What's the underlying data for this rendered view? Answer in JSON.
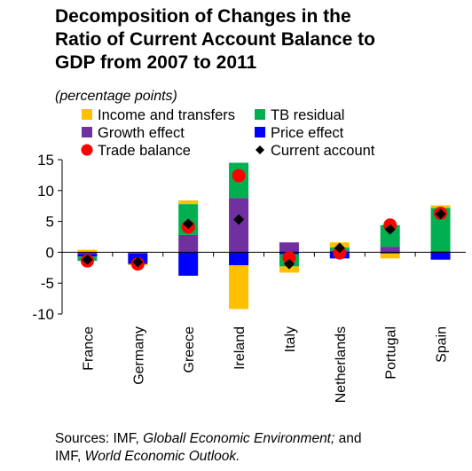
{
  "title": {
    "lines": [
      "Decomposition of Changes in the",
      "Ratio of Current Account Balance to",
      "GDP from 2007 to 2011"
    ]
  },
  "subtitle": "(percentage points)",
  "source": {
    "prefix": "Sources: IMF, ",
    "title1": "Globall Economic Environment;",
    "mid": " and",
    "line2_prefix": "IMF, ",
    "title2": "World Economic Outlook."
  },
  "colors": {
    "income_and_transfers": "#ffc000",
    "tb_residual": "#00b050",
    "growth_effect": "#7030a0",
    "price_effect": "#0000ff",
    "trade_balance": "#ff0000",
    "current_account": "#000000"
  },
  "chart_data": {
    "type": "bar",
    "stacked": true,
    "categories": [
      "France",
      "Germany",
      "Greece",
      "Ireland",
      "Italy",
      "Netherlands",
      "Portugal",
      "Spain"
    ],
    "series": [
      {
        "name": "Growth effect",
        "kind": "bar",
        "color": "#7030a0",
        "values": [
          -0.3,
          -0.2,
          2.8,
          8.8,
          1.6,
          0.3,
          0.9,
          0.2
        ]
      },
      {
        "name": "Price effect",
        "kind": "bar",
        "color": "#0000ff",
        "values": [
          -0.4,
          -1.7,
          -3.8,
          -2.1,
          -0.3,
          -1.0,
          -0.2,
          -1.2
        ]
      },
      {
        "name": "TB residual",
        "kind": "bar",
        "color": "#00b050",
        "values": [
          -0.7,
          0.0,
          5.0,
          5.7,
          -2.0,
          0.5,
          3.5,
          7.0
        ]
      },
      {
        "name": "Income and transfers",
        "kind": "bar",
        "color": "#ffc000",
        "values": [
          0.4,
          -0.2,
          0.6,
          -7.1,
          -1.0,
          0.8,
          -0.8,
          0.4
        ]
      },
      {
        "name": "Trade balance",
        "kind": "marker",
        "marker": "circle",
        "color": "#ff0000",
        "values": [
          -1.4,
          -1.9,
          4.1,
          12.4,
          -0.9,
          -0.1,
          4.4,
          6.3
        ]
      },
      {
        "name": "Current account",
        "kind": "marker",
        "marker": "diamond",
        "color": "#000000",
        "values": [
          -1.2,
          -1.6,
          4.6,
          5.3,
          -1.9,
          0.7,
          3.7,
          6.2
        ]
      }
    ],
    "legend_order": [
      "Income and transfers",
      "TB residual",
      "Growth effect",
      "Price effect",
      "Trade balance",
      "Current account"
    ],
    "ylim": [
      -10,
      15
    ],
    "yticks": [
      -10,
      -5,
      0,
      5,
      10,
      15
    ],
    "legend_position": "top",
    "grid": false
  }
}
